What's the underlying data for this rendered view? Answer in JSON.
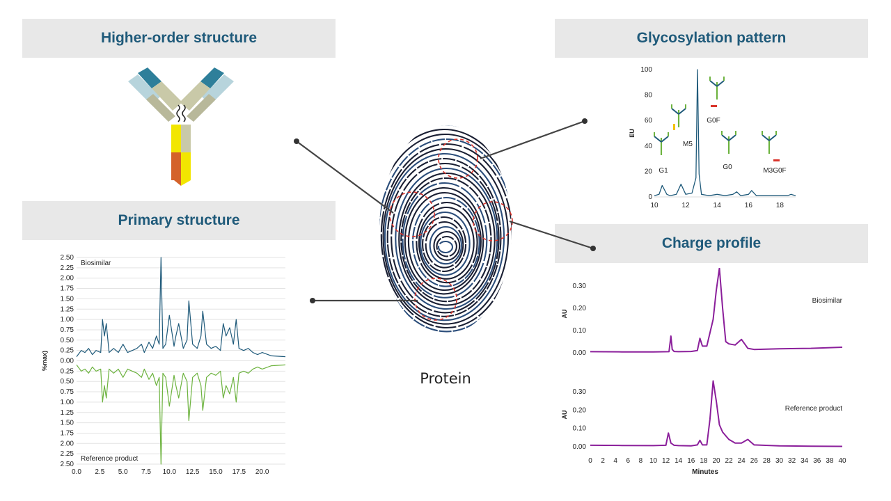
{
  "center": {
    "label": "Protein"
  },
  "panels": {
    "higher_order": {
      "title": "Higher-order structure"
    },
    "glycosylation": {
      "title": "Glycosylation pattern"
    },
    "primary": {
      "title": "Primary structure"
    },
    "charge": {
      "title": "Charge profile"
    }
  },
  "colors": {
    "banner_bg": "#e8e8e8",
    "banner_text": "#1f5a7a",
    "blue_trace": "#1f5a7a",
    "green_trace": "#6db33f",
    "purple_trace": "#8b1f9b",
    "red_circle": "#d9342b"
  },
  "chart_data": [
    {
      "id": "glycosylation",
      "type": "line",
      "xlabel": "",
      "ylabel": "EU",
      "xticks": [
        "10",
        "12",
        "14",
        "16",
        "18"
      ],
      "yticks": [
        "0",
        "20",
        "40",
        "60",
        "80",
        "100"
      ],
      "xlim": [
        10,
        19
      ],
      "ylim": [
        0,
        100
      ],
      "series": [
        {
          "x": [
            10,
            10.3,
            10.5,
            10.8,
            11,
            11.4,
            11.7,
            12,
            12.4,
            12.65,
            12.75,
            12.85,
            13,
            13.5,
            14,
            14.5,
            15,
            15.25,
            15.5,
            16,
            16.2,
            16.5,
            17,
            17.5,
            18,
            18.5,
            18.7,
            19
          ],
          "y": [
            1,
            2,
            9,
            2,
            1,
            2,
            10,
            2,
            3,
            15,
            100,
            18,
            2,
            1,
            2,
            1,
            2,
            4,
            1,
            2,
            5,
            1,
            1,
            1,
            1,
            1,
            2,
            1
          ]
        }
      ],
      "annotations": [
        "M5",
        "G0F",
        "G1",
        "G0",
        "M3G0F"
      ]
    },
    {
      "id": "primary",
      "type": "line",
      "ylabel": "%max)",
      "xticks": [
        "0.0",
        "2.5",
        "5.0",
        "7.5",
        "10.0",
        "12.5",
        "15.0",
        "17.5",
        "20.0"
      ],
      "yticks": [
        "2.50",
        "2.25",
        "2.00",
        "1.75",
        "1.50",
        "1.25",
        "1.00",
        "0.75",
        "0.50",
        "0.25",
        "0.00",
        "0.25",
        "0.50",
        "0.75",
        "1.00",
        "1.25",
        "1.50",
        "1.75",
        "2.00",
        "2.25",
        "2.50"
      ],
      "xlim": [
        0,
        22.5
      ],
      "ylim": [
        -2.5,
        2.5
      ],
      "series": [
        {
          "name": "Biosimilar",
          "x": [
            0,
            0.5,
            0.9,
            1.3,
            1.7,
            2.1,
            2.6,
            2.8,
            3.0,
            3.2,
            3.5,
            4,
            4.5,
            5,
            5.5,
            6,
            6.5,
            7,
            7.3,
            7.8,
            8.2,
            8.6,
            8.9,
            9.1,
            9.3,
            9.6,
            10.0,
            10.5,
            10.7,
            11.0,
            11.5,
            11.9,
            12.1,
            12.5,
            13.0,
            13.4,
            13.6,
            14,
            14.5,
            15.0,
            15.5,
            15.8,
            16.1,
            16.5,
            16.9,
            17.2,
            17.5,
            18,
            18.5,
            19,
            19.5,
            20,
            21,
            22.5
          ],
          "y": [
            0.1,
            0.25,
            0.2,
            0.3,
            0.15,
            0.25,
            0.2,
            1.0,
            0.6,
            0.9,
            0.2,
            0.3,
            0.2,
            0.4,
            0.2,
            0.25,
            0.3,
            0.4,
            0.2,
            0.45,
            0.3,
            0.6,
            0.4,
            2.5,
            0.3,
            0.4,
            1.1,
            0.35,
            0.6,
            0.9,
            0.3,
            0.5,
            1.45,
            0.4,
            0.3,
            0.6,
            1.2,
            0.4,
            0.3,
            0.35,
            0.25,
            0.9,
            0.6,
            0.8,
            0.4,
            1.0,
            0.3,
            0.25,
            0.3,
            0.2,
            0.15,
            0.2,
            0.12,
            0.1
          ]
        },
        {
          "name": "Reference product",
          "x": [
            0,
            0.5,
            0.9,
            1.3,
            1.7,
            2.1,
            2.6,
            2.8,
            3.0,
            3.2,
            3.5,
            4,
            4.5,
            5,
            5.5,
            6,
            6.5,
            7,
            7.3,
            7.8,
            8.2,
            8.6,
            8.9,
            9.1,
            9.3,
            9.6,
            10.0,
            10.5,
            10.7,
            11.0,
            11.5,
            11.9,
            12.1,
            12.5,
            13.0,
            13.4,
            13.6,
            14,
            14.5,
            15.0,
            15.5,
            15.8,
            16.1,
            16.5,
            16.9,
            17.2,
            17.5,
            18,
            18.5,
            19,
            19.5,
            20,
            21,
            22.5
          ],
          "y": [
            -0.1,
            -0.25,
            -0.2,
            -0.3,
            -0.15,
            -0.25,
            -0.2,
            -1.0,
            -0.6,
            -0.9,
            -0.2,
            -0.3,
            -0.2,
            -0.4,
            -0.2,
            -0.25,
            -0.3,
            -0.4,
            -0.2,
            -0.45,
            -0.3,
            -0.6,
            -0.4,
            -2.5,
            -0.3,
            -0.4,
            -1.1,
            -0.35,
            -0.6,
            -0.9,
            -0.3,
            -0.5,
            -1.45,
            -0.4,
            -0.3,
            -0.6,
            -1.2,
            -0.4,
            -0.3,
            -0.35,
            -0.25,
            -0.9,
            -0.6,
            -0.8,
            -0.4,
            -1.0,
            -0.3,
            -0.25,
            -0.3,
            -0.2,
            -0.15,
            -0.2,
            -0.12,
            -0.1
          ]
        }
      ]
    },
    {
      "id": "charge",
      "type": "line",
      "xlabel": "Minutes",
      "ylabel": "AU",
      "xticks": [
        "0",
        "2",
        "4",
        "6",
        "8",
        "10",
        "12",
        "14",
        "16",
        "18",
        "20",
        "22",
        "24",
        "26",
        "28",
        "30",
        "32",
        "34",
        "36",
        "38",
        "40"
      ],
      "yticks": [
        "0.00",
        "0.10",
        "0.20",
        "0.30"
      ],
      "xlim": [
        0,
        40
      ],
      "ylim": [
        0,
        0.35
      ],
      "series": [
        {
          "name": "Biosimilar",
          "x": [
            0,
            5,
            10,
            12.5,
            12.8,
            13,
            13.3,
            14,
            16,
            17,
            17.4,
            17.8,
            18.5,
            19.5,
            20,
            20.5,
            21,
            21.5,
            22,
            23,
            24,
            25,
            26,
            30,
            35,
            40
          ],
          "y": [
            0.005,
            0.004,
            0.004,
            0.005,
            0.075,
            0.015,
            0.006,
            0.005,
            0.006,
            0.01,
            0.065,
            0.03,
            0.03,
            0.15,
            0.28,
            0.38,
            0.2,
            0.05,
            0.04,
            0.035,
            0.06,
            0.02,
            0.015,
            0.018,
            0.02,
            0.025
          ]
        },
        {
          "name": "Reference product",
          "x": [
            0,
            5,
            10,
            12,
            12.4,
            12.8,
            13.3,
            14,
            16,
            17,
            17.4,
            17.8,
            18.5,
            19,
            19.5,
            20,
            20.5,
            21,
            22,
            23,
            24,
            25,
            26,
            30,
            35,
            40
          ],
          "y": [
            0.008,
            0.007,
            0.006,
            0.008,
            0.075,
            0.02,
            0.008,
            0.006,
            0.005,
            0.01,
            0.035,
            0.01,
            0.01,
            0.15,
            0.36,
            0.25,
            0.12,
            0.08,
            0.04,
            0.02,
            0.02,
            0.04,
            0.01,
            0.005,
            0.003,
            0.002
          ]
        }
      ]
    }
  ]
}
